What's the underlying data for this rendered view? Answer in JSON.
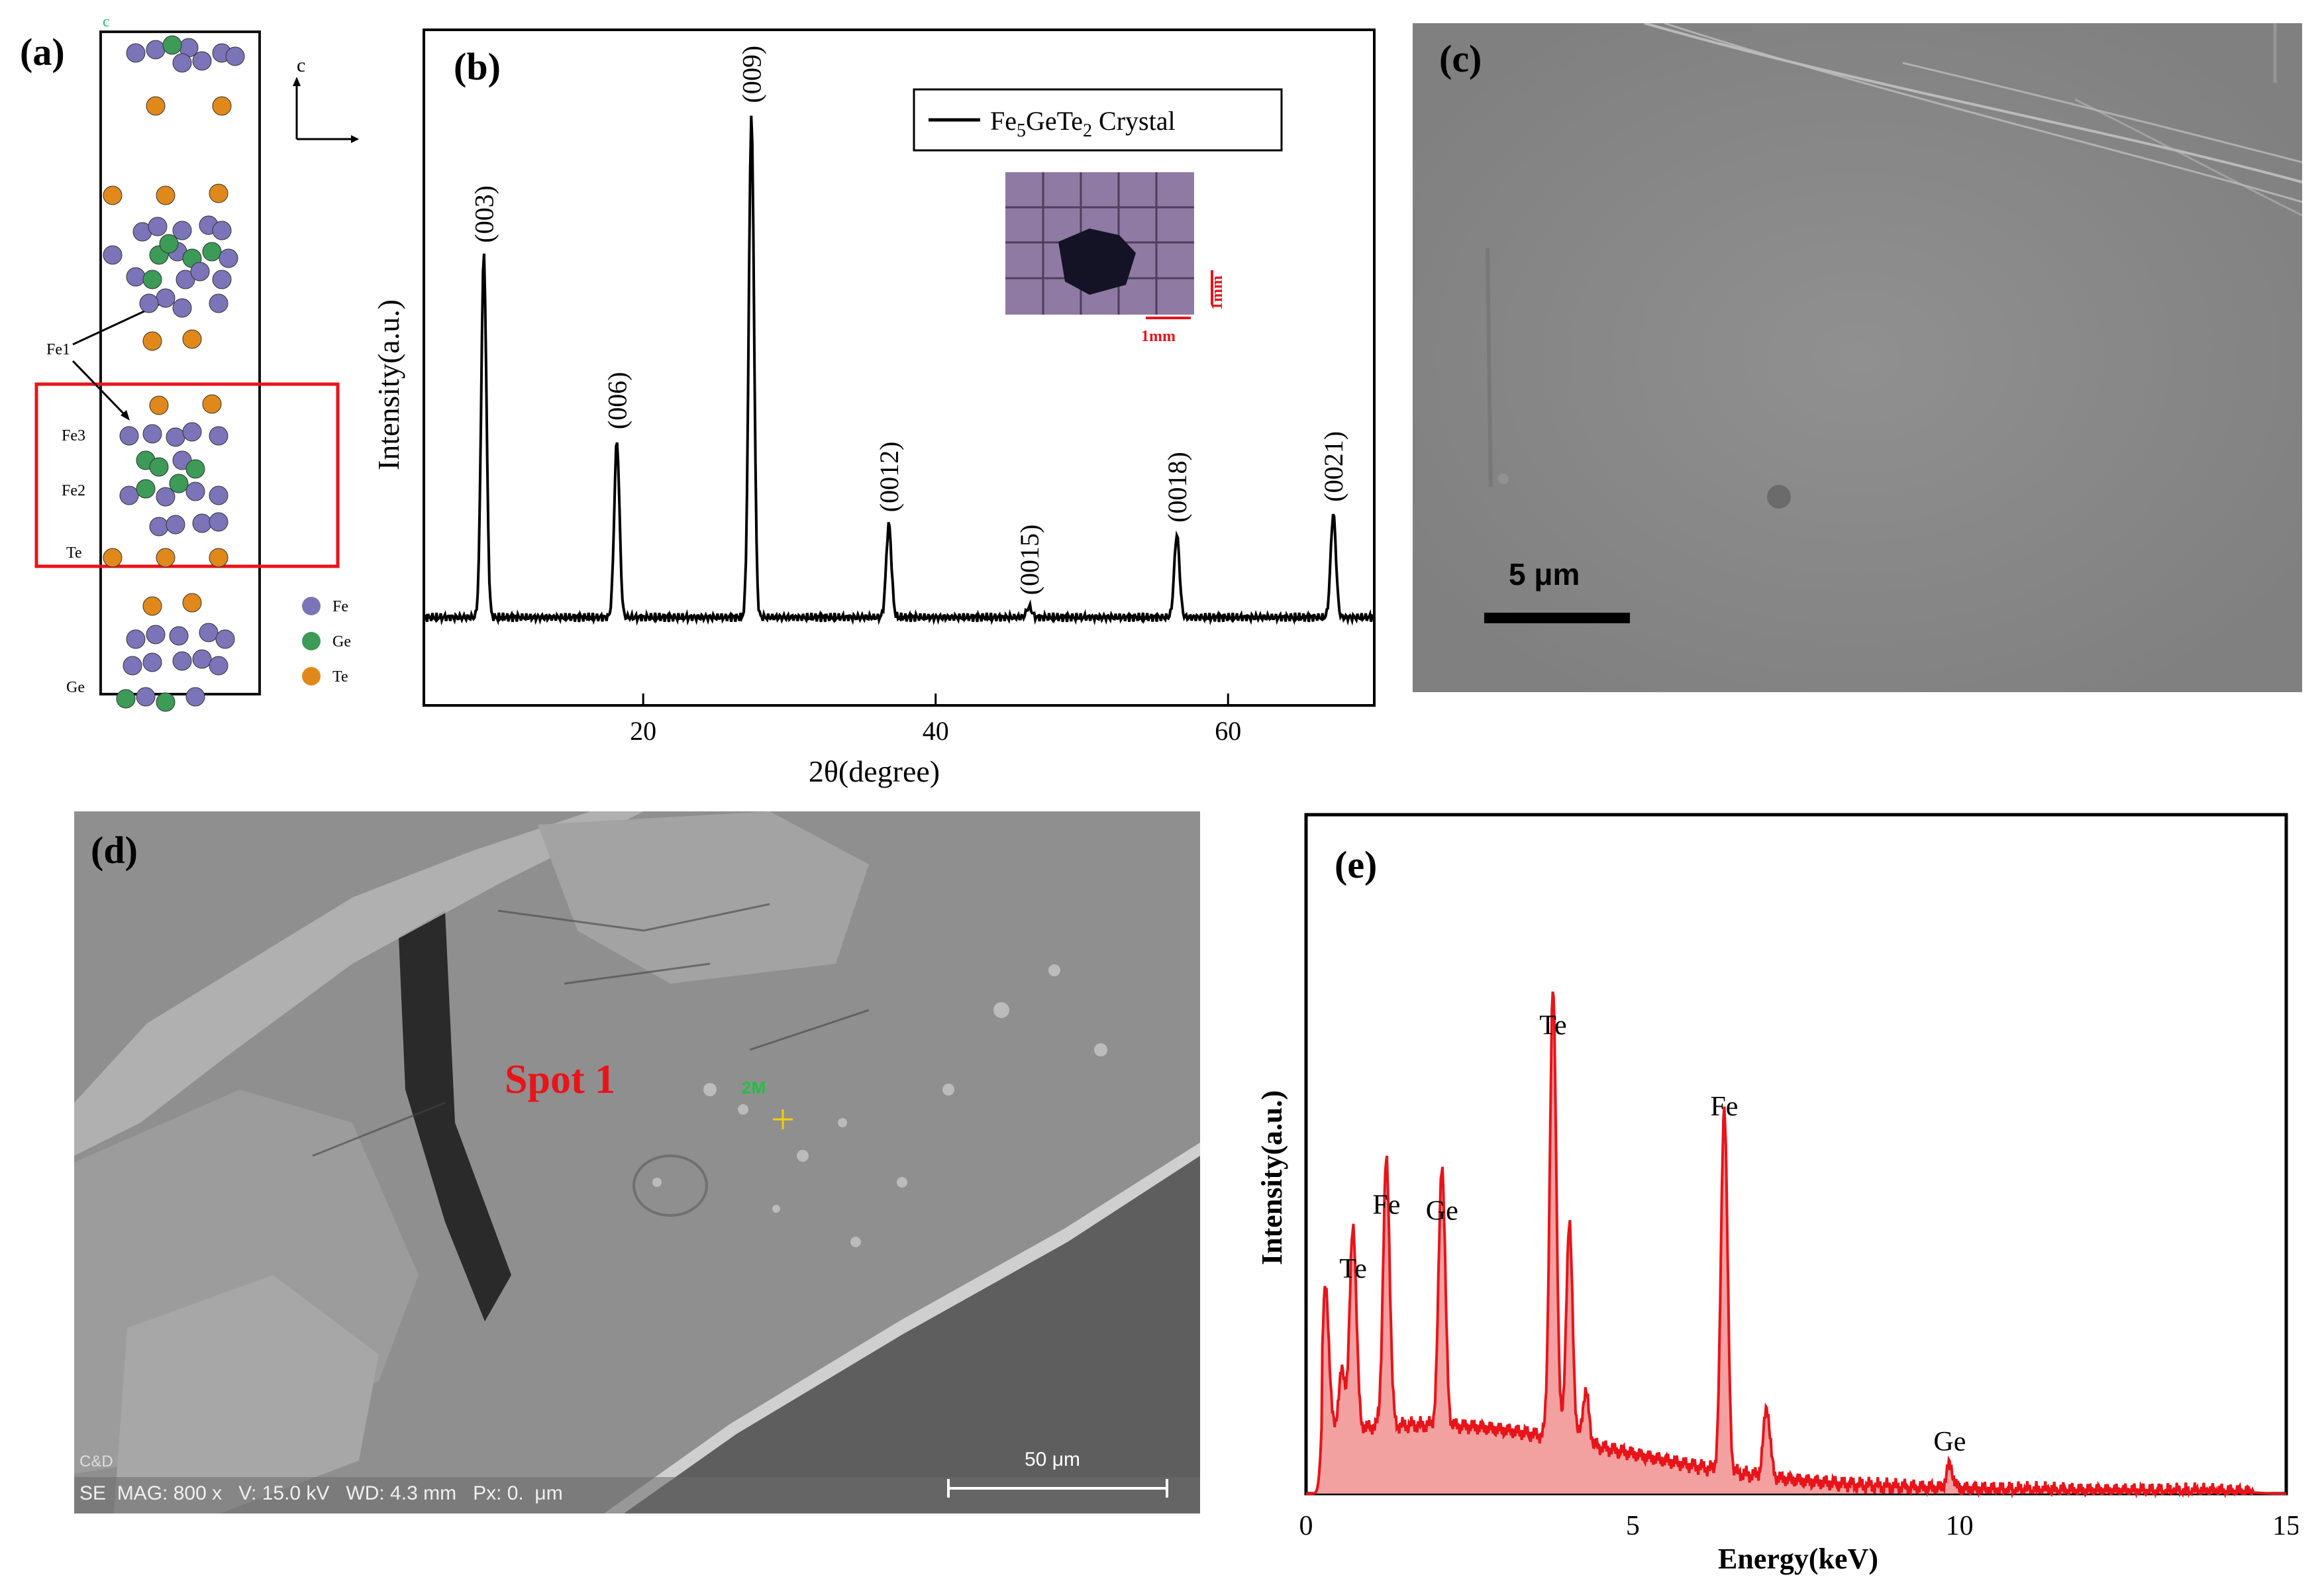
{
  "panels": {
    "a": "(a)",
    "b": "(b)",
    "c": "(c)",
    "d": "(d)",
    "e": "(e)"
  },
  "panel_a": {
    "axis_c_top": "c",
    "axis_c_arrow": "c",
    "site_labels": [
      "Fe1",
      "Fe3",
      "Fe2",
      "Te",
      "Ge"
    ],
    "legend": [
      {
        "label": "Fe",
        "color": "#7b74b8"
      },
      {
        "label": "Ge",
        "color": "#3b9b57"
      },
      {
        "label": "Te",
        "color": "#e0891a"
      }
    ],
    "highlight_color": "#e8141a"
  },
  "panel_c": {
    "scale_label": "5 μm"
  },
  "panel_d": {
    "spot_label": "Spot 1",
    "spot_marker": "2M",
    "scale_label": "50 μm",
    "info_bar": "SE  MAG: 800 x   V: 15.0 kV   WD: 4.3 mm   Px: 0.  μm",
    "corner_text": "C&D"
  },
  "chart_data": [
    {
      "type": "line",
      "panel": "b",
      "xlabel": "2θ(degree)",
      "ylabel": "Intensity(a.u.)",
      "xlim": [
        5,
        70
      ],
      "xticks": [
        20,
        40,
        60
      ],
      "ylim": [
        0,
        100
      ],
      "grid": false,
      "series": [
        {
          "name": "Fe5GeTe2 Crystal",
          "color": "#000000"
        }
      ],
      "legend": {
        "position": "top-right",
        "text_main": "Fe",
        "sub1": "5",
        "mid": "GeTe",
        "sub2": "2",
        "tail": " Crystal"
      },
      "peaks": [
        {
          "x": 9.1,
          "y": 70,
          "label": "(003)"
        },
        {
          "x": 18.2,
          "y": 34,
          "label": "(006)"
        },
        {
          "x": 27.4,
          "y": 97,
          "label": "(009)"
        },
        {
          "x": 36.8,
          "y": 18,
          "label": "(0012)"
        },
        {
          "x": 46.4,
          "y": 2,
          "label": "(0015)"
        },
        {
          "x": 56.5,
          "y": 16,
          "label": "(0018)"
        },
        {
          "x": 67.2,
          "y": 20,
          "label": "(0021)"
        }
      ],
      "inset": {
        "scale_x": "1mm",
        "scale_y": "1mm"
      }
    },
    {
      "type": "area",
      "panel": "e",
      "xlabel": "Energy(keV)",
      "ylabel": "Intensity(a.u.)",
      "xlim": [
        0,
        15
      ],
      "xticks": [
        0,
        5,
        10,
        15
      ],
      "ylim": [
        0,
        100
      ],
      "grid": false,
      "color": "#e8141a",
      "peaks": [
        {
          "x": 0.3,
          "y": 25,
          "label": ""
        },
        {
          "x": 0.55,
          "y": 10,
          "label": ""
        },
        {
          "x": 0.72,
          "y": 35,
          "label": "Te"
        },
        {
          "x": 1.23,
          "y": 46,
          "label": "Fe"
        },
        {
          "x": 2.08,
          "y": 45,
          "label": "Ge"
        },
        {
          "x": 3.78,
          "y": 77,
          "label": "Te"
        },
        {
          "x": 4.03,
          "y": 37,
          "label": ""
        },
        {
          "x": 4.28,
          "y": 9,
          "label": ""
        },
        {
          "x": 6.4,
          "y": 63,
          "label": "Fe"
        },
        {
          "x": 7.05,
          "y": 12,
          "label": ""
        },
        {
          "x": 9.85,
          "y": 4,
          "label": "Ge"
        }
      ]
    }
  ]
}
